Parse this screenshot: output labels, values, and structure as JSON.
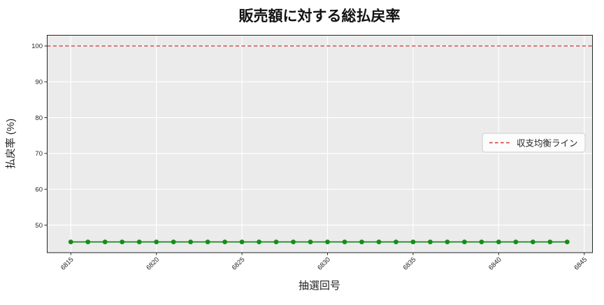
{
  "chart_data": {
    "type": "line",
    "title": "販売額に対する総払戻率",
    "xlabel": "抽選回号",
    "ylabel": "払戻率 (%)",
    "x": [
      6815,
      6816,
      6817,
      6818,
      6819,
      6820,
      6821,
      6822,
      6823,
      6824,
      6825,
      6826,
      6827,
      6828,
      6829,
      6830,
      6831,
      6832,
      6833,
      6834,
      6835,
      6836,
      6837,
      6838,
      6839,
      6840,
      6841,
      6842,
      6843,
      6844
    ],
    "series": [
      {
        "values": [
          45.3,
          45.3,
          45.3,
          45.3,
          45.3,
          45.3,
          45.3,
          45.3,
          45.3,
          45.3,
          45.3,
          45.3,
          45.3,
          45.3,
          45.3,
          45.3,
          45.3,
          45.3,
          45.3,
          45.3,
          45.3,
          45.3,
          45.3,
          45.3,
          45.3,
          45.3,
          45.3,
          45.3,
          45.3,
          45.3
        ],
        "color": "#1a8a1a",
        "marker": "circle",
        "line_style": "solid"
      }
    ],
    "reference_line": {
      "value": 100,
      "label": "収支均衡ライン",
      "color": "#cc3333",
      "style": "dashed"
    },
    "xticks": [
      6815,
      6820,
      6825,
      6830,
      6835,
      6840,
      6845
    ],
    "yticks": [
      50,
      60,
      70,
      80,
      90,
      100
    ],
    "xlim": [
      6813.6,
      6845.5
    ],
    "ylim": [
      42.3,
      103.1
    ],
    "grid": true,
    "plot_background": "#ebebeb",
    "grid_color": "#ffffff",
    "legend": {
      "entries": [
        "収支均衡ライン"
      ],
      "position": "center-right"
    }
  }
}
